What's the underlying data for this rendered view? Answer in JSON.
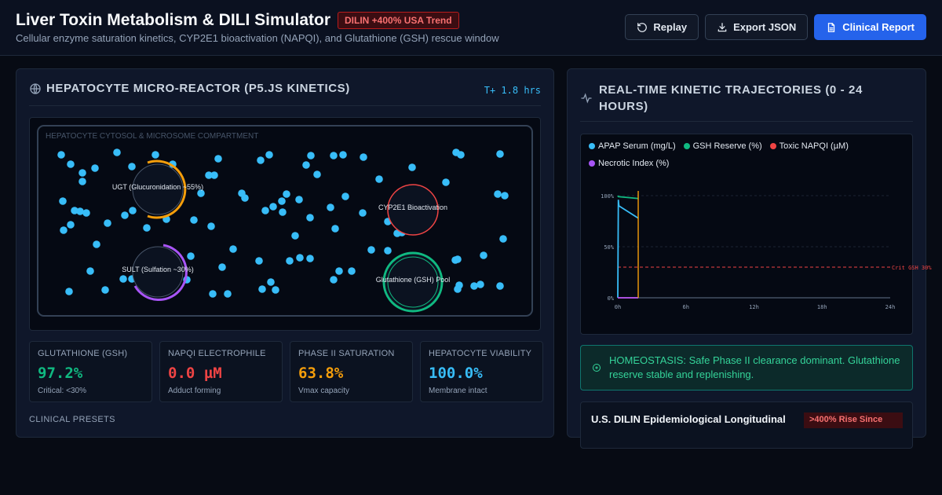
{
  "header": {
    "title": "Liver Toxin Metabolism & DILI Simulator",
    "badge": "DILIN +400% USA Trend",
    "subtitle": "Cellular enzyme saturation kinetics, CYP2E1 bioactivation (NAPQI), and Glutathione (GSH) rescue window",
    "buttons": {
      "replay": "Replay",
      "export": "Export JSON",
      "report": "Clinical Report"
    }
  },
  "left_panel": {
    "title": "HEPATOCYTE MICRO-REACTOR (P5.JS KINETICS)",
    "time": "T+ 1.8 hrs",
    "compartment_label": "HEPATOCYTE CYTOSOL & MICROSOME COMPARTMENT",
    "zones": [
      {
        "label": "UGT (Glucuronidation ~55%)",
        "color": "#f59e0b"
      },
      {
        "label": "CYP2E1 Bioactivation",
        "color": "#ef4444"
      },
      {
        "label": "SULT (Sulfation ~30%)",
        "color": "#a855f7"
      },
      {
        "label": "Glutathione (GSH) Pool",
        "color": "#10b981"
      }
    ],
    "metrics": [
      {
        "label": "GLUTATHIONE (GSH)",
        "value": "97.2%",
        "sub": "Critical: <30%",
        "color": "#10b981"
      },
      {
        "label": "NAPQI ELECTROPHILE",
        "value": "0.0 µM",
        "sub": "Adduct forming",
        "color": "#ef4444"
      },
      {
        "label": "PHASE II SATURATION",
        "value": "63.8%",
        "sub": "Vmax capacity",
        "color": "#f59e0b"
      },
      {
        "label": "HEPATOCYTE VIABILITY",
        "value": "100.0%",
        "sub": "Membrane intact",
        "color": "#38bdf8"
      }
    ],
    "presets_label": "CLINICAL PRESETS"
  },
  "right_panel": {
    "title": "REAL-TIME KINETIC TRAJECTORIES (0 - 24 HOURS)",
    "status": "HOMEOSTASIS: Safe Phase II clearance dominant. Glutathione reserve stable and replenishing.",
    "epi_title": "U.S. DILIN Epidemiological Longitudinal",
    "epi_badge": ">400% Rise Since"
  },
  "chart_data": {
    "type": "line",
    "title": "",
    "xlabel": "",
    "ylabel": "",
    "x_ticks": [
      "0h",
      "6h",
      "12h",
      "18h",
      "24h"
    ],
    "y_ticks": [
      "0%",
      "50%",
      "100%"
    ],
    "xlim": [
      0,
      24
    ],
    "ylim": [
      0,
      100
    ],
    "threshold": {
      "label": "Crit GSH 30%",
      "value": 30,
      "color": "#ef4444"
    },
    "cursor_x": 1.8,
    "series": [
      {
        "name": "APAP Serum (mg/L)",
        "color": "#38bdf8",
        "x": [
          0,
          0.05,
          0.1,
          1.8
        ],
        "y": [
          0,
          96,
          90,
          78
        ]
      },
      {
        "name": "GSH Reserve (%)",
        "color": "#10b981",
        "x": [
          0,
          0.05,
          1.8
        ],
        "y": [
          100,
          99,
          97.2
        ]
      },
      {
        "name": "Toxic NAPQI (µM)",
        "color": "#ef4444",
        "x": [
          0,
          1.8
        ],
        "y": [
          0,
          0
        ]
      },
      {
        "name": "Necrotic Index (%)",
        "color": "#a855f7",
        "x": [
          0,
          1.8
        ],
        "y": [
          0,
          0
        ]
      }
    ]
  }
}
